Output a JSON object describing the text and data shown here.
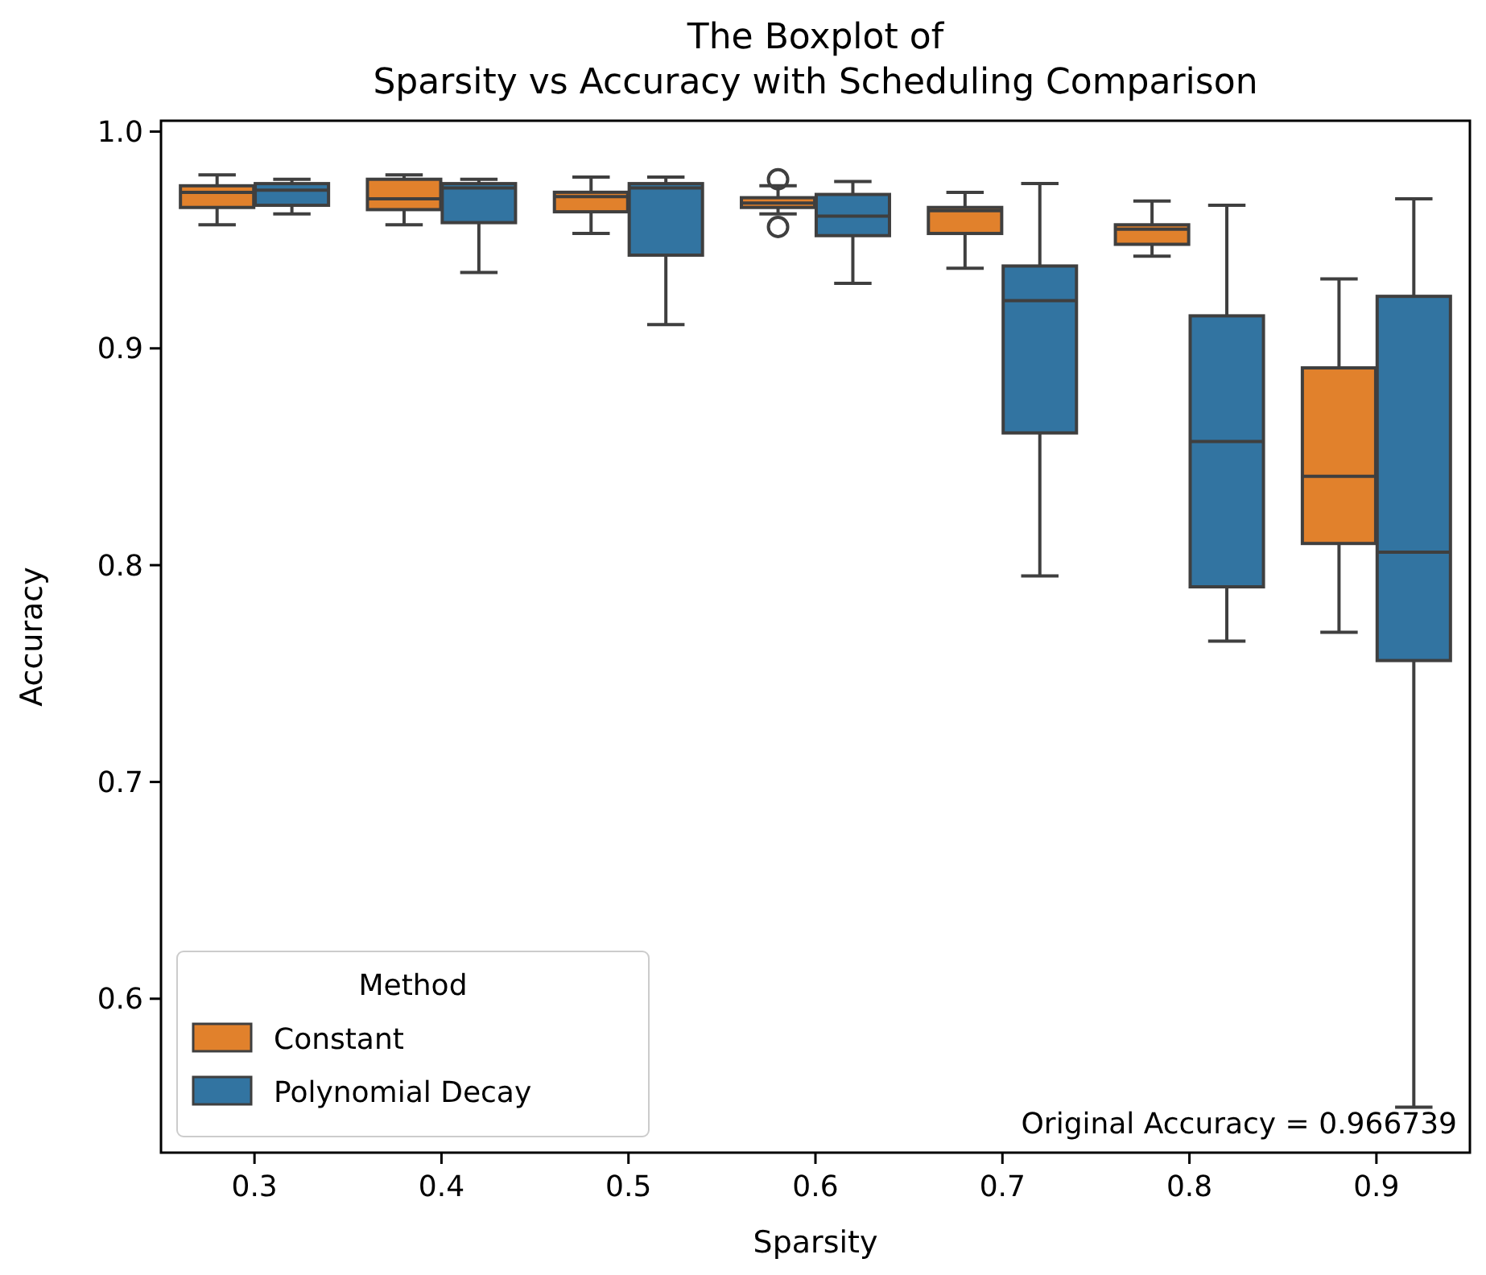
{
  "chart_data": {
    "type": "box",
    "title": "The Boxplot of\nSparsity vs Accuracy with Scheduling Comparison",
    "xlabel": "Sparsity",
    "ylabel": "Accuracy",
    "legend_title": "Method",
    "legend": "bottom left",
    "categories": [
      "0.3",
      "0.4",
      "0.5",
      "0.6",
      "0.7",
      "0.8",
      "0.9"
    ],
    "ylim": [
      0.529,
      1.005
    ],
    "yticks": [
      {
        "value": 0.6,
        "label": "0.6"
      },
      {
        "value": 0.7,
        "label": "0.7"
      },
      {
        "value": 0.8,
        "label": "0.8"
      },
      {
        "value": 0.9,
        "label": "0.9"
      },
      {
        "value": 1.0,
        "label": "1.0"
      }
    ],
    "annotations": [
      "Original Accuracy = 0.966739"
    ],
    "series": [
      {
        "name": "Constant",
        "color": "#e1812c",
        "boxes": [
          {
            "low": 0.957,
            "q1": 0.965,
            "median": 0.972,
            "q3": 0.975,
            "high": 0.98
          },
          {
            "low": 0.957,
            "q1": 0.964,
            "median": 0.969,
            "q3": 0.978,
            "high": 0.98
          },
          {
            "low": 0.953,
            "q1": 0.963,
            "median": 0.97,
            "q3": 0.972,
            "high": 0.979
          },
          {
            "low": 0.962,
            "q1": 0.965,
            "median": 0.967,
            "q3": 0.9695,
            "high": 0.975,
            "outliers": [
              0.978,
              0.956
            ]
          },
          {
            "low": 0.937,
            "q1": 0.953,
            "median": 0.9635,
            "q3": 0.965,
            "high": 0.972
          },
          {
            "low": 0.9425,
            "q1": 0.948,
            "median": 0.955,
            "q3": 0.957,
            "high": 0.968
          },
          {
            "low": 0.769,
            "q1": 0.81,
            "median": 0.841,
            "q3": 0.891,
            "high": 0.932
          }
        ]
      },
      {
        "name": "Polynomial Decay",
        "color": "#3274a1",
        "boxes": [
          {
            "low": 0.962,
            "q1": 0.966,
            "median": 0.973,
            "q3": 0.976,
            "high": 0.978
          },
          {
            "low": 0.935,
            "q1": 0.958,
            "median": 0.974,
            "q3": 0.976,
            "high": 0.978
          },
          {
            "low": 0.911,
            "q1": 0.943,
            "median": 0.974,
            "q3": 0.976,
            "high": 0.979
          },
          {
            "low": 0.93,
            "q1": 0.952,
            "median": 0.961,
            "q3": 0.971,
            "high": 0.977
          },
          {
            "low": 0.795,
            "q1": 0.861,
            "median": 0.922,
            "q3": 0.938,
            "high": 0.976
          },
          {
            "low": 0.765,
            "q1": 0.79,
            "median": 0.857,
            "q3": 0.915,
            "high": 0.966
          },
          {
            "low": 0.55,
            "q1": 0.756,
            "median": 0.806,
            "q3": 0.924,
            "high": 0.969
          }
        ]
      }
    ]
  }
}
